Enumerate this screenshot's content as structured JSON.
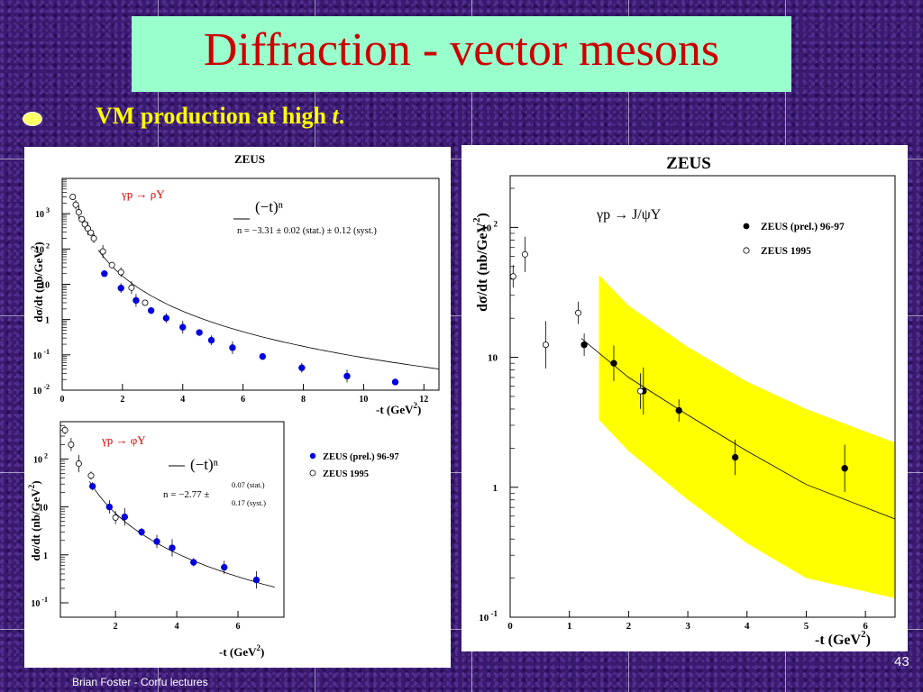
{
  "slide": {
    "title": "Diffraction - vector mesons",
    "bullet_main": "VM production at high ",
    "bullet_var": "t",
    "bullet_end": ".",
    "footer": "Brian Foster - Corfu lectures",
    "page_number": "43"
  },
  "colors": {
    "title_box": "#99ffcc",
    "title_text": "#cc0000",
    "bullet_text": "#ffff00",
    "series_prel": "#0000dd",
    "band": "#ffff00"
  },
  "chart_data": [
    {
      "type": "scatter",
      "title": "ZEUS",
      "process": "γp → ρY",
      "fit_label": "(−t)ⁿ",
      "fit_result": "n = −3.31 ± 0.02 (stat.) ± 0.12 (syst.)",
      "xlabel": "-t (GeV",
      "xlabel_exp": "2",
      "ylabel": "dσ/dt (nb/GeV",
      "ylabel_exp": "2",
      "xlim": [
        0,
        12.5
      ],
      "ylim": [
        0.01,
        10000
      ],
      "yscale": "log",
      "xticks": [
        0,
        2,
        4,
        6,
        8,
        10,
        12
      ],
      "yticks": [
        {
          "base": "10",
          "exp": "-2"
        },
        {
          "base": "10",
          "exp": "-1"
        },
        {
          "base": "1",
          "exp": ""
        },
        {
          "base": "10",
          "exp": ""
        },
        {
          "base": "10",
          "exp": "2"
        },
        {
          "base": "10",
          "exp": "3"
        }
      ],
      "series": [
        {
          "name": "ZEUS (prel.) 96-97",
          "marker": "filled",
          "x": [
            1.4,
            1.95,
            2.45,
            2.95,
            3.45,
            4.0,
            4.55,
            4.95,
            5.65,
            6.65,
            7.95,
            9.45,
            11.05
          ],
          "y": [
            20,
            7.8,
            3.5,
            1.8,
            1.1,
            0.61,
            0.43,
            0.26,
            0.16,
            0.09,
            0.043,
            0.025,
            0.017
          ]
        },
        {
          "name": "ZEUS 1995",
          "marker": "open",
          "x": [
            0.35,
            0.45,
            0.55,
            0.65,
            0.75,
            0.85,
            0.95,
            1.05,
            1.35,
            1.65,
            1.95,
            2.3,
            2.75
          ],
          "y": [
            3000,
            1800,
            1100,
            700,
            500,
            380,
            290,
            200,
            85,
            35,
            22,
            8,
            3
          ]
        }
      ],
      "fit": {
        "n": -3.31,
        "norm": 170,
        "x_range": [
          1.2,
          12.5
        ]
      }
    },
    {
      "type": "scatter",
      "title": "",
      "process": "γp → φY",
      "fit_label": "(−t)ⁿ",
      "fit_result": "n = −2.77 ±",
      "fit_err_stat": "0.07 (stat.)",
      "fit_err_syst": "0.17 (syst.)",
      "xlabel": "-t (GeV",
      "xlabel_exp": "2",
      "ylabel": "dσ/dt (nb/GeV",
      "ylabel_exp": "2",
      "xlim": [
        0.2,
        7.5
      ],
      "ylim": [
        0.05,
        600
      ],
      "yscale": "log",
      "xticks": [
        2,
        4,
        6
      ],
      "yticks": [
        {
          "base": "10",
          "exp": "-1"
        },
        {
          "base": "1",
          "exp": ""
        },
        {
          "base": "10",
          "exp": ""
        },
        {
          "base": "10",
          "exp": "2"
        }
      ],
      "legend": [
        "ZEUS (prel.) 96-97",
        "ZEUS 1995"
      ],
      "series": [
        {
          "name": "ZEUS (prel.) 96-97",
          "marker": "filled",
          "x": [
            1.25,
            1.8,
            2.3,
            2.85,
            3.35,
            3.85,
            4.55,
            5.55,
            6.6
          ],
          "y": [
            27,
            10,
            6.2,
            3.0,
            1.9,
            1.4,
            0.7,
            0.55,
            0.3
          ]
        },
        {
          "name": "ZEUS 1995",
          "marker": "open",
          "x": [
            0.35,
            0.55,
            0.8,
            1.2,
            2.0
          ],
          "y": [
            400,
            200,
            80,
            45,
            6
          ]
        }
      ],
      "fit": {
        "n": -2.77,
        "norm": 50,
        "x_range": [
          1.15,
          7.2
        ]
      }
    },
    {
      "type": "scatter",
      "title": "ZEUS",
      "process": "γp → J/ψY",
      "xlabel": "-t (GeV",
      "xlabel_exp": "2",
      "ylabel": "dσ/dt (nb/GeV",
      "ylabel_exp": "2",
      "xlim": [
        0,
        6.5
      ],
      "ylim": [
        0.1,
        250
      ],
      "yscale": "log",
      "xticks": [
        0,
        1,
        2,
        3,
        4,
        5,
        6
      ],
      "yticks": [
        {
          "base": "10",
          "exp": "-1"
        },
        {
          "base": "1",
          "exp": ""
        },
        {
          "base": "10",
          "exp": ""
        },
        {
          "base": "10",
          "exp": "2"
        }
      ],
      "legend": [
        "ZEUS (prel.) 96-97",
        "ZEUS 1995"
      ],
      "series": [
        {
          "name": "ZEUS (prel.) 96-97",
          "marker": "filled",
          "x": [
            1.25,
            1.75,
            2.25,
            2.85,
            3.8,
            5.65
          ],
          "y": [
            12.5,
            9.0,
            5.5,
            3.9,
            1.7,
            1.4
          ]
        },
        {
          "name": "ZEUS 1995",
          "marker": "open",
          "x": [
            0.05,
            0.25,
            0.6,
            1.15,
            2.2
          ],
          "y": [
            42,
            62,
            12.5,
            22,
            5.5
          ]
        }
      ],
      "band": {
        "x": [
          1.5,
          2.0,
          3.0,
          4.0,
          5.0,
          6.5
        ],
        "lower": [
          3.3,
          1.9,
          0.8,
          0.37,
          0.2,
          0.14
        ],
        "upper": [
          43,
          25,
          12,
          6.5,
          4.0,
          2.2
        ]
      },
      "fit": {
        "points": [
          [
            1.2,
            14
          ],
          [
            2.0,
            7.0
          ],
          [
            3.0,
            3.6
          ],
          [
            4.0,
            1.9
          ],
          [
            5.0,
            1.05
          ],
          [
            6.5,
            0.57
          ]
        ]
      }
    }
  ]
}
